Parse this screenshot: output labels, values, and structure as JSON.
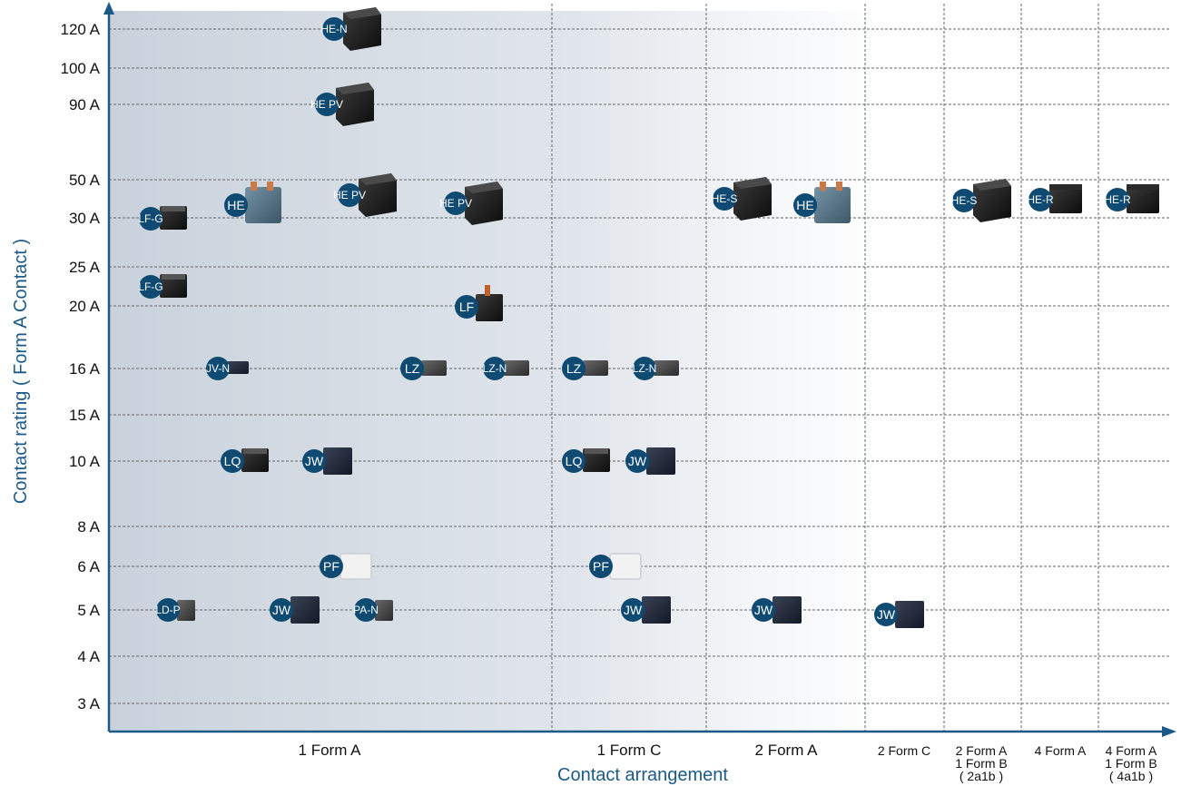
{
  "chart_data": {
    "type": "scatter",
    "xlabel": "Contact arrangement",
    "ylabel": "Contact rating ( Form A Contact )",
    "y_ticks": [
      "120 A",
      "100 A",
      "90 A",
      "50 A",
      "30 A",
      "25 A",
      "20 A",
      "16 A",
      "15 A",
      "10 A",
      "8 A",
      "6 A",
      "5 A",
      "4 A",
      "3 A"
    ],
    "categories": [
      {
        "key": "1a",
        "lines": [
          "1 Form A"
        ]
      },
      {
        "key": "1c",
        "lines": [
          "1 Form C"
        ]
      },
      {
        "key": "2a",
        "lines": [
          "2 Form A"
        ]
      },
      {
        "key": "2c",
        "lines": [
          "2 Form C"
        ]
      },
      {
        "key": "2a1b",
        "lines": [
          "2 Form A",
          "1 Form B",
          "( 2a1b )"
        ]
      },
      {
        "key": "4a",
        "lines": [
          "4 Form A"
        ]
      },
      {
        "key": "4a1b",
        "lines": [
          "4 Form A",
          "1 Form B",
          "( 4a1b )"
        ]
      }
    ],
    "grid": "dashed",
    "colors": {
      "badge": "#0e4a72",
      "axis": "#1b5a86",
      "grid": "#666666"
    },
    "points": [
      {
        "label": "HE-N",
        "category": "1 Form A",
        "rating": "120 A",
        "relay": "black-large"
      },
      {
        "label": "HE PV",
        "category": "1 Form A",
        "rating": "90 A",
        "relay": "black-large"
      },
      {
        "label": "LF-G",
        "category": "1 Form A",
        "rating": "30 A",
        "relay": "black-small"
      },
      {
        "label": "HE",
        "category": "1 Form A",
        "rating": "30 A",
        "relay": "blue-clear"
      },
      {
        "label": "HE PV",
        "category": "1 Form A",
        "rating": "30 A",
        "relay": "black-large"
      },
      {
        "label": "HE PV",
        "category": "1 Form A",
        "rating": "30 A",
        "relay": "black-large"
      },
      {
        "label": "LF-G",
        "category": "1 Form A",
        "rating": "25 A",
        "relay": "black-small"
      },
      {
        "label": "LF",
        "category": "1 Form A",
        "rating": "20 A",
        "relay": "black-terminal"
      },
      {
        "label": "JV-N",
        "category": "1 Form A",
        "rating": "16 A",
        "relay": "dark-flat"
      },
      {
        "label": "LZ",
        "category": "1 Form A",
        "rating": "16 A",
        "relay": "gray-flat"
      },
      {
        "label": "LZ-N",
        "category": "1 Form A",
        "rating": "16 A",
        "relay": "gray-flat"
      },
      {
        "label": "LZ",
        "category": "1 Form C",
        "rating": "16 A",
        "relay": "gray-flat"
      },
      {
        "label": "LZ-N",
        "category": "1 Form C",
        "rating": "16 A",
        "relay": "gray-flat"
      },
      {
        "label": "LQ",
        "category": "1 Form A",
        "rating": "10 A",
        "relay": "black-small"
      },
      {
        "label": "JW",
        "category": "1 Form A",
        "rating": "10 A",
        "relay": "navy"
      },
      {
        "label": "LQ",
        "category": "1 Form C",
        "rating": "10 A",
        "relay": "black-small"
      },
      {
        "label": "JW",
        "category": "1 Form C",
        "rating": "10 A",
        "relay": "navy"
      },
      {
        "label": "PF",
        "category": "1 Form A",
        "rating": "6 A",
        "relay": "white"
      },
      {
        "label": "PF",
        "category": "1 Form C",
        "rating": "6 A",
        "relay": "white"
      },
      {
        "label": "LD-P",
        "category": "1 Form A",
        "rating": "5 A",
        "relay": "gray-slim"
      },
      {
        "label": "JW",
        "category": "1 Form A",
        "rating": "5 A",
        "relay": "navy"
      },
      {
        "label": "PA-N",
        "category": "1 Form A",
        "rating": "5 A",
        "relay": "gray-slim"
      },
      {
        "label": "JW",
        "category": "1 Form C",
        "rating": "5 A",
        "relay": "navy"
      },
      {
        "label": "JW",
        "category": "2 Form A",
        "rating": "5 A",
        "relay": "navy"
      },
      {
        "label": "JW",
        "category": "2 Form C",
        "rating": "5 A",
        "relay": "navy"
      },
      {
        "label": "HE-S",
        "category": "2 Form A",
        "rating": "30 A",
        "relay": "black-large"
      },
      {
        "label": "HE",
        "category": "2 Form A",
        "rating": "30 A",
        "relay": "blue-clear"
      },
      {
        "label": "HE-S",
        "category": "2 Form A 1 Form B ( 2a1b )",
        "rating": "30 A",
        "relay": "black-large"
      },
      {
        "label": "HE-R",
        "category": "4 Form A",
        "rating": "30 A",
        "relay": "black-wide"
      },
      {
        "label": "HE-R",
        "category": "4 Form A 1 Form B ( 4a1b )",
        "rating": "30 A",
        "relay": "black-wide"
      }
    ]
  }
}
